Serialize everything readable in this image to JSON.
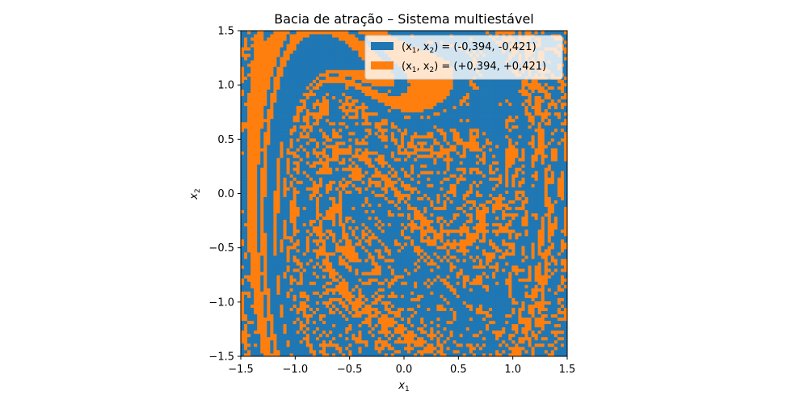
{
  "chart_data": {
    "type": "heatmap",
    "title": "Bacia de atração – Sistema multiestável",
    "xlabel": {
      "base": "x",
      "sub": "1"
    },
    "ylabel": {
      "base": "x",
      "sub": "2"
    },
    "xlim": [
      -1.5,
      1.5
    ],
    "ylim": [
      -1.5,
      1.5
    ],
    "xticks": [
      -1.5,
      -1.0,
      -0.5,
      0.0,
      0.5,
      1.0,
      1.5
    ],
    "xtick_labels": [
      "−1.5",
      "−1.0",
      "−0.5",
      "0.0",
      "0.5",
      "1.0",
      "1.5"
    ],
    "yticks": [
      -1.5,
      -1.0,
      -0.5,
      0.0,
      0.5,
      1.0,
      1.5
    ],
    "ytick_labels": [
      "−1.5",
      "−1.0",
      "−0.5",
      "0.0",
      "0.5",
      "1.0",
      "1.5"
    ],
    "grid": false,
    "legend_position": "top-right",
    "resolution": 100,
    "attractors": [
      {
        "label_prefix": "(x",
        "label_mid": ", x",
        "label_suffix": ") = (-0,394, -0,421)",
        "x": -0.394,
        "y": -0.421,
        "color": "#1f77b4"
      },
      {
        "label_prefix": "(x",
        "label_mid": ", x",
        "label_suffix": ") = (+0,394, +0,421)",
        "x": 0.394,
        "y": 0.421,
        "color": "#ff7f0e"
      }
    ]
  }
}
